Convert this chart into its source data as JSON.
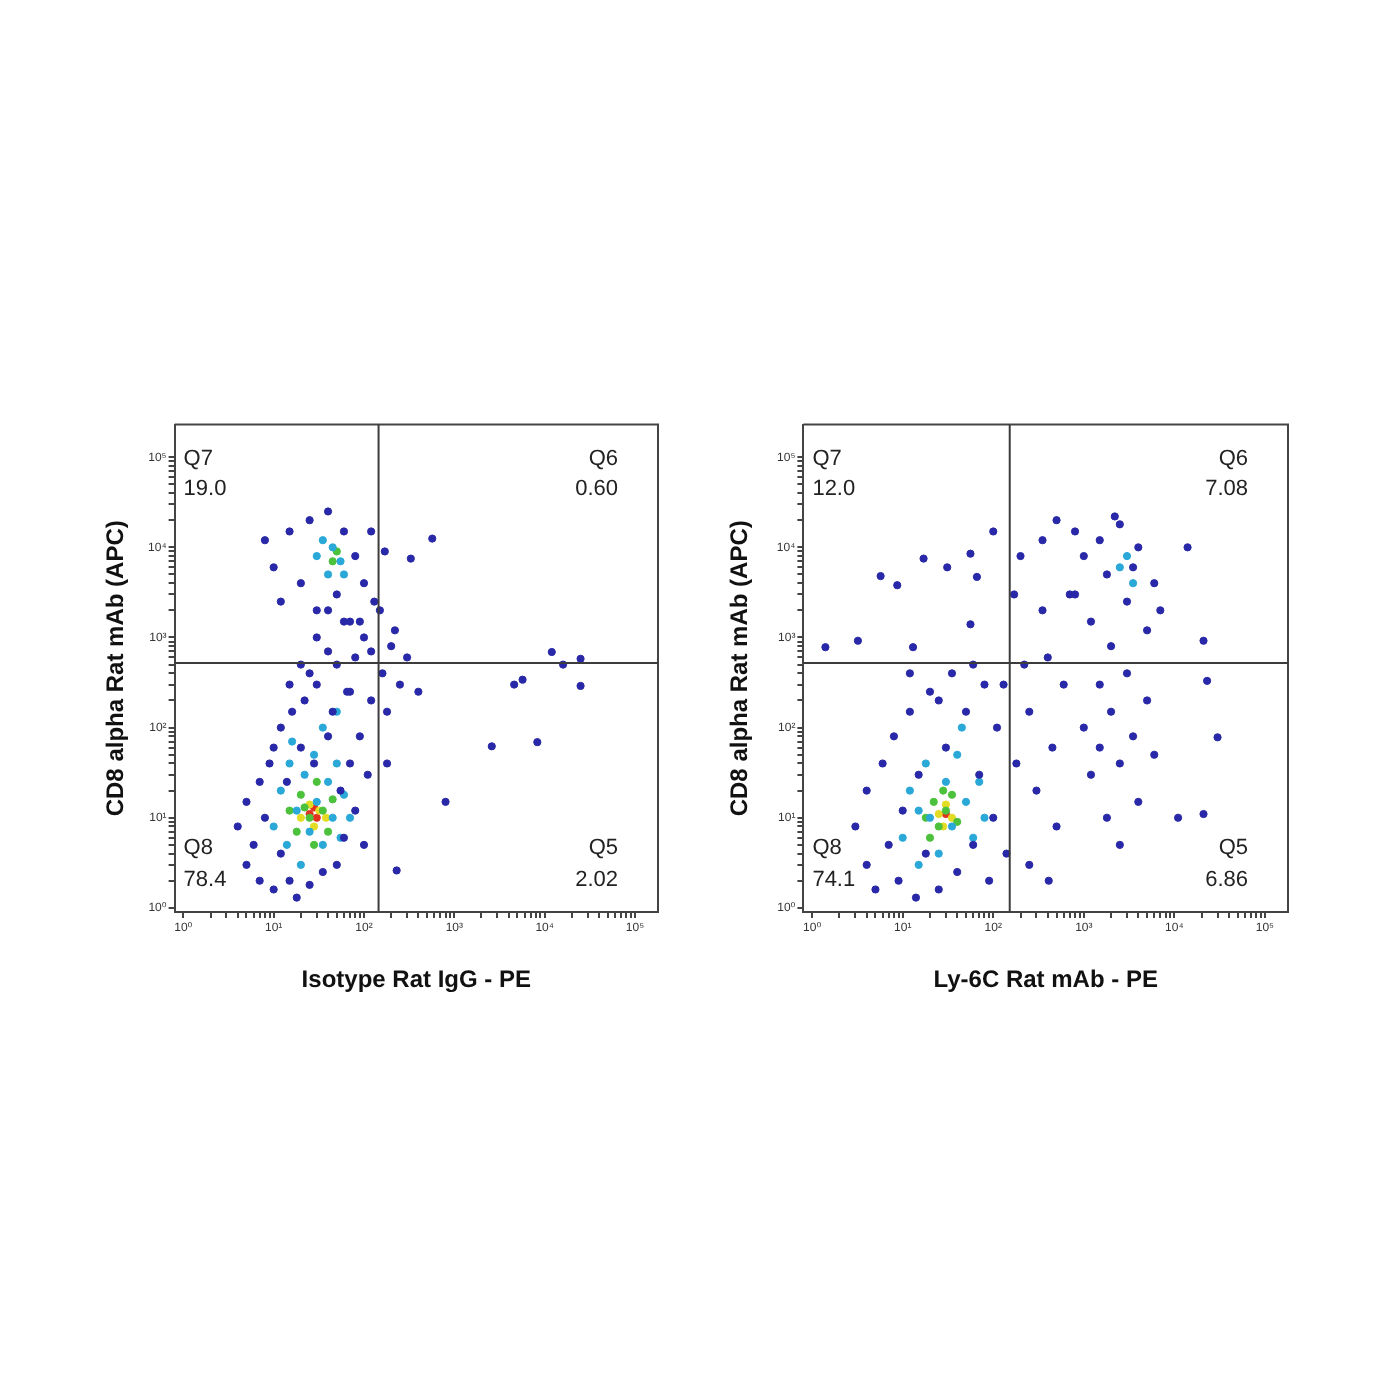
{
  "chart_data": [
    {
      "type": "scatter",
      "xlabel": "Isotype Rat IgG - PE",
      "ylabel": "CD8 alpha Rat mAb (APC)",
      "log": "xy",
      "marker": "circle",
      "xlim": [
        0.8,
        180000
      ],
      "ylim": [
        0.9,
        230000
      ],
      "xticks": [
        {
          "value": 1,
          "label": "10⁰"
        },
        {
          "value": 2,
          "label": null
        },
        {
          "value": 3,
          "label": null
        },
        {
          "value": 4,
          "label": null
        },
        {
          "value": 5,
          "label": null
        },
        {
          "value": 6,
          "label": null
        },
        {
          "value": 7,
          "label": null
        },
        {
          "value": 8,
          "label": null
        },
        {
          "value": 9,
          "label": null
        },
        {
          "value": 10,
          "label": "10¹"
        },
        {
          "value": 20,
          "label": null
        },
        {
          "value": 30,
          "label": null
        },
        {
          "value": 40,
          "label": null
        },
        {
          "value": 50,
          "label": null
        },
        {
          "value": 60,
          "label": null
        },
        {
          "value": 70,
          "label": null
        },
        {
          "value": 80,
          "label": null
        },
        {
          "value": 90,
          "label": null
        },
        {
          "value": 100,
          "label": "10²"
        },
        {
          "value": 200,
          "label": null
        },
        {
          "value": 300,
          "label": null
        },
        {
          "value": 400,
          "label": null
        },
        {
          "value": 500,
          "label": null
        },
        {
          "value": 600,
          "label": null
        },
        {
          "value": 700,
          "label": null
        },
        {
          "value": 800,
          "label": null
        },
        {
          "value": 900,
          "label": null
        },
        {
          "value": 1000,
          "label": "10³"
        },
        {
          "value": 2000,
          "label": null
        },
        {
          "value": 3000,
          "label": null
        },
        {
          "value": 4000,
          "label": null
        },
        {
          "value": 5000,
          "label": null
        },
        {
          "value": 6000,
          "label": null
        },
        {
          "value": 7000,
          "label": null
        },
        {
          "value": 8000,
          "label": null
        },
        {
          "value": 9000,
          "label": null
        },
        {
          "value": 10000,
          "label": "10⁴"
        },
        {
          "value": 20000,
          "label": null
        },
        {
          "value": 30000,
          "label": null
        },
        {
          "value": 40000,
          "label": null
        },
        {
          "value": 50000,
          "label": null
        },
        {
          "value": 60000,
          "label": null
        },
        {
          "value": 70000,
          "label": null
        },
        {
          "value": 80000,
          "label": null
        },
        {
          "value": 90000,
          "label": null
        },
        {
          "value": 100000,
          "label": "10⁵"
        }
      ],
      "yticks": [
        {
          "value": 1,
          "label": "10⁰"
        },
        {
          "value": 2,
          "label": null
        },
        {
          "value": 3,
          "label": null
        },
        {
          "value": 4,
          "label": null
        },
        {
          "value": 5,
          "label": null
        },
        {
          "value": 6,
          "label": null
        },
        {
          "value": 7,
          "label": null
        },
        {
          "value": 8,
          "label": null
        },
        {
          "value": 9,
          "label": null
        },
        {
          "value": 10,
          "label": "10¹"
        },
        {
          "value": 20,
          "label": null
        },
        {
          "value": 30,
          "label": null
        },
        {
          "value": 40,
          "label": null
        },
        {
          "value": 50,
          "label": null
        },
        {
          "value": 60,
          "label": null
        },
        {
          "value": 70,
          "label": null
        },
        {
          "value": 80,
          "label": null
        },
        {
          "value": 90,
          "label": null
        },
        {
          "value": 100,
          "label": "10²"
        },
        {
          "value": 200,
          "label": null
        },
        {
          "value": 300,
          "label": null
        },
        {
          "value": 400,
          "label": null
        },
        {
          "value": 500,
          "label": null
        },
        {
          "value": 600,
          "label": null
        },
        {
          "value": 700,
          "label": null
        },
        {
          "value": 800,
          "label": null
        },
        {
          "value": 900,
          "label": null
        },
        {
          "value": 1000,
          "label": "10³"
        },
        {
          "value": 2000,
          "label": null
        },
        {
          "value": 3000,
          "label": null
        },
        {
          "value": 4000,
          "label": null
        },
        {
          "value": 5000,
          "label": null
        },
        {
          "value": 6000,
          "label": null
        },
        {
          "value": 7000,
          "label": null
        },
        {
          "value": 8000,
          "label": null
        },
        {
          "value": 9000,
          "label": null
        },
        {
          "value": 10000,
          "label": "10⁴"
        },
        {
          "value": 20000,
          "label": null
        },
        {
          "value": 30000,
          "label": null
        },
        {
          "value": 40000,
          "label": null
        },
        {
          "value": 50000,
          "label": null
        },
        {
          "value": 60000,
          "label": null
        },
        {
          "value": 70000,
          "label": null
        },
        {
          "value": 80000,
          "label": null
        },
        {
          "value": 90000,
          "label": null
        },
        {
          "value": 100000,
          "label": "10⁵"
        }
      ],
      "ref_lines": [
        {
          "axis": "x",
          "value": 145,
          "color": "#3c3c3c"
        },
        {
          "axis": "y",
          "value": 520,
          "color": "#3c3c3c"
        }
      ],
      "annotations": [
        "Q7",
        "19.0",
        "Q6",
        "0.60",
        "Q8",
        "78.4",
        "Q5",
        "2.02"
      ],
      "series": [
        {
          "color": "#2828a8",
          "x": [
            4,
            5,
            5,
            6,
            7,
            7,
            8,
            9,
            10,
            10,
            12,
            12,
            14,
            15,
            16,
            18,
            20,
            22,
            25,
            28,
            30,
            35,
            40,
            45,
            50,
            55,
            60,
            65,
            70,
            80,
            90,
            100,
            110,
            120,
            160,
            180,
            200,
            250,
            300,
            400,
            180,
            220,
            150,
            20,
            30,
            40,
            60,
            80,
            15,
            100,
            25,
            50,
            70,
            120,
            90,
            40,
            10,
            12,
            15,
            20,
            25,
            30,
            40,
            50,
            60,
            70,
            80,
            100,
            120,
            8,
            130,
            170,
            570,
            12000,
            16000,
            25000,
            25000,
            5700,
            4600,
            2600,
            8300,
            800,
            230,
            330
          ],
          "values": [
            8,
            3,
            15,
            5,
            25,
            2,
            10,
            40,
            1.6,
            60,
            4,
            100,
            25,
            2,
            150,
            1.3,
            60,
            200,
            1.8,
            40,
            300,
            2.5,
            80,
            150,
            3,
            20,
            6,
            250,
            40,
            12,
            80,
            5,
            30,
            200,
            400,
            150,
            800,
            300,
            600,
            250,
            40,
            1200,
            2000,
            500,
            1000,
            700,
            1500,
            600,
            300,
            1000,
            400,
            500,
            250,
            700,
            1500,
            2000,
            6000,
            2500,
            15000,
            4000,
            20000,
            2000,
            25000,
            3000,
            15000,
            1500,
            8000,
            4000,
            15000,
            12000,
            2500,
            9000,
            12500,
            690,
            500,
            580,
            290,
            340,
            300,
            62,
            69,
            15,
            2.6,
            7500
          ]
        },
        {
          "color": "#2aa8d8",
          "x": [
            10,
            12,
            14,
            15,
            18,
            20,
            22,
            25,
            28,
            30,
            35,
            40,
            45,
            50,
            55,
            60,
            70,
            16,
            35,
            50,
            30,
            40,
            45,
            55,
            35,
            60
          ],
          "values": [
            8,
            20,
            5,
            40,
            12,
            3,
            30,
            7,
            50,
            15,
            5,
            25,
            10,
            40,
            6,
            18,
            10,
            70,
            100,
            150,
            8000,
            5000,
            10000,
            7000,
            12000,
            5000
          ]
        },
        {
          "color": "#4cc23c",
          "x": [
            15,
            18,
            20,
            25,
            28,
            30,
            35,
            40,
            45,
            22,
            45,
            50
          ],
          "values": [
            12,
            7,
            18,
            10,
            5,
            25,
            12,
            7,
            16,
            13,
            7000,
            9000
          ]
        },
        {
          "color": "#e4dc22",
          "x": [
            20,
            25,
            28,
            32,
            38
          ],
          "values": [
            10,
            14,
            8,
            12,
            10
          ]
        },
        {
          "color": "#e0321e",
          "x": [
            25,
            30,
            28
          ],
          "values": [
            11,
            10,
            13
          ]
        }
      ]
    },
    {
      "type": "scatter",
      "xlabel": "Ly-6C Rat mAb - PE",
      "ylabel": "CD8 alpha Rat mAb (APC)",
      "log": "xy",
      "marker": "circle",
      "xlim": [
        0.8,
        180000
      ],
      "ylim": [
        0.9,
        230000
      ],
      "xticks": [
        {
          "value": 1,
          "label": "10⁰"
        },
        {
          "value": 2,
          "label": null
        },
        {
          "value": 3,
          "label": null
        },
        {
          "value": 4,
          "label": null
        },
        {
          "value": 5,
          "label": null
        },
        {
          "value": 6,
          "label": null
        },
        {
          "value": 7,
          "label": null
        },
        {
          "value": 8,
          "label": null
        },
        {
          "value": 9,
          "label": null
        },
        {
          "value": 10,
          "label": "10¹"
        },
        {
          "value": 20,
          "label": null
        },
        {
          "value": 30,
          "label": null
        },
        {
          "value": 40,
          "label": null
        },
        {
          "value": 50,
          "label": null
        },
        {
          "value": 60,
          "label": null
        },
        {
          "value": 70,
          "label": null
        },
        {
          "value": 80,
          "label": null
        },
        {
          "value": 90,
          "label": null
        },
        {
          "value": 100,
          "label": "10²"
        },
        {
          "value": 200,
          "label": null
        },
        {
          "value": 300,
          "label": null
        },
        {
          "value": 400,
          "label": null
        },
        {
          "value": 500,
          "label": null
        },
        {
          "value": 600,
          "label": null
        },
        {
          "value": 700,
          "label": null
        },
        {
          "value": 800,
          "label": null
        },
        {
          "value": 900,
          "label": null
        },
        {
          "value": 1000,
          "label": "10³"
        },
        {
          "value": 2000,
          "label": null
        },
        {
          "value": 3000,
          "label": null
        },
        {
          "value": 4000,
          "label": null
        },
        {
          "value": 5000,
          "label": null
        },
        {
          "value": 6000,
          "label": null
        },
        {
          "value": 7000,
          "label": null
        },
        {
          "value": 8000,
          "label": null
        },
        {
          "value": 9000,
          "label": null
        },
        {
          "value": 10000,
          "label": "10⁴"
        },
        {
          "value": 20000,
          "label": null
        },
        {
          "value": 30000,
          "label": null
        },
        {
          "value": 40000,
          "label": null
        },
        {
          "value": 50000,
          "label": null
        },
        {
          "value": 60000,
          "label": null
        },
        {
          "value": 70000,
          "label": null
        },
        {
          "value": 80000,
          "label": null
        },
        {
          "value": 90000,
          "label": null
        },
        {
          "value": 100000,
          "label": "10⁵"
        }
      ],
      "yticks": [
        {
          "value": 1,
          "label": "10⁰"
        },
        {
          "value": 2,
          "label": null
        },
        {
          "value": 3,
          "label": null
        },
        {
          "value": 4,
          "label": null
        },
        {
          "value": 5,
          "label": null
        },
        {
          "value": 6,
          "label": null
        },
        {
          "value": 7,
          "label": null
        },
        {
          "value": 8,
          "label": null
        },
        {
          "value": 9,
          "label": null
        },
        {
          "value": 10,
          "label": "10¹"
        },
        {
          "value": 20,
          "label": null
        },
        {
          "value": 30,
          "label": null
        },
        {
          "value": 40,
          "label": null
        },
        {
          "value": 50,
          "label": null
        },
        {
          "value": 60,
          "label": null
        },
        {
          "value": 70,
          "label": null
        },
        {
          "value": 80,
          "label": null
        },
        {
          "value": 90,
          "label": null
        },
        {
          "value": 100,
          "label": "10²"
        },
        {
          "value": 200,
          "label": null
        },
        {
          "value": 300,
          "label": null
        },
        {
          "value": 400,
          "label": null
        },
        {
          "value": 500,
          "label": null
        },
        {
          "value": 600,
          "label": null
        },
        {
          "value": 700,
          "label": null
        },
        {
          "value": 800,
          "label": null
        },
        {
          "value": 900,
          "label": null
        },
        {
          "value": 1000,
          "label": "10³"
        },
        {
          "value": 2000,
          "label": null
        },
        {
          "value": 3000,
          "label": null
        },
        {
          "value": 4000,
          "label": null
        },
        {
          "value": 5000,
          "label": null
        },
        {
          "value": 6000,
          "label": null
        },
        {
          "value": 7000,
          "label": null
        },
        {
          "value": 8000,
          "label": null
        },
        {
          "value": 9000,
          "label": null
        },
        {
          "value": 10000,
          "label": "10⁴"
        },
        {
          "value": 20000,
          "label": null
        },
        {
          "value": 30000,
          "label": null
        },
        {
          "value": 40000,
          "label": null
        },
        {
          "value": 50000,
          "label": null
        },
        {
          "value": 60000,
          "label": null
        },
        {
          "value": 70000,
          "label": null
        },
        {
          "value": 80000,
          "label": null
        },
        {
          "value": 90000,
          "label": null
        },
        {
          "value": 100000,
          "label": "10⁵"
        }
      ],
      "ref_lines": [
        {
          "axis": "x",
          "value": 152,
          "color": "#3c3c3c"
        },
        {
          "axis": "y",
          "value": 520,
          "color": "#3c3c3c"
        }
      ],
      "annotations": [
        "Q7",
        "12.0",
        "Q6",
        "7.08",
        "Q8",
        "74.1",
        "Q5",
        "6.86"
      ],
      "series": [
        {
          "color": "#2828a8",
          "x": [
            3,
            4,
            4,
            5,
            6,
            7,
            8,
            9,
            10,
            12,
            14,
            15,
            18,
            20,
            25,
            30,
            35,
            40,
            50,
            60,
            70,
            80,
            90,
            100,
            110,
            130,
            140,
            12,
            25,
            60,
            5.7,
            8.7,
            17,
            31,
            56,
            66,
            100,
            3.2,
            1.4,
            13,
            56,
            170,
            200,
            220,
            250,
            300,
            350,
            400,
            450,
            500,
            600,
            700,
            250,
            180,
            800,
            350,
            500,
            800,
            1000,
            1200,
            1500,
            2000,
            2500,
            3000,
            4000,
            5000,
            6000,
            1800,
            3500,
            7000,
            2200,
            1000,
            1200,
            1500,
            1800,
            2000,
            2500,
            3000,
            3500,
            4000,
            5000,
            1500,
            2500,
            6000,
            21000,
            23000,
            30000,
            14000,
            11000,
            21000,
            410
          ],
          "values": [
            8,
            3,
            20,
            1.6,
            40,
            5,
            80,
            2,
            12,
            150,
            1.3,
            30,
            4,
            250,
            1.6,
            60,
            400,
            2.5,
            150,
            5,
            30,
            300,
            2,
            10,
            100,
            300,
            4,
            400,
            200,
            500,
            4800,
            3800,
            7500,
            6000,
            8500,
            4700,
            15000,
            920,
            780,
            780,
            1400,
            3000,
            8000,
            500,
            150,
            20,
            2000,
            600,
            60,
            8,
            300,
            3000,
            3,
            40,
            15000,
            12000,
            20000,
            3000,
            8000,
            1500,
            12000,
            800,
            18000,
            2500,
            10000,
            1200,
            4000,
            5000,
            6000,
            2000,
            22000,
            100,
            30,
            300,
            10,
            150,
            40,
            400,
            80,
            15,
            200,
            60,
            5,
            50,
            920,
            330,
            78,
            10000,
            10,
            11,
            2
          ]
        },
        {
          "color": "#2aa8d8",
          "x": [
            10,
            12,
            15,
            18,
            20,
            25,
            30,
            35,
            40,
            50,
            60,
            70,
            80,
            15,
            45,
            2500,
            3000,
            3500
          ],
          "values": [
            6,
            20,
            3,
            40,
            10,
            4,
            25,
            8,
            50,
            15,
            6,
            25,
            10,
            12,
            100,
            6000,
            8000,
            4000
          ]
        },
        {
          "color": "#4cc23c",
          "x": [
            18,
            22,
            25,
            30,
            35,
            40,
            28,
            20
          ],
          "values": [
            10,
            15,
            8,
            12,
            18,
            9,
            20,
            6
          ]
        },
        {
          "color": "#e4dc22",
          "x": [
            25,
            30,
            35,
            28
          ],
          "values": [
            11,
            14,
            10,
            8
          ]
        },
        {
          "color": "#e0321e",
          "x": [
            30
          ],
          "values": [
            11
          ]
        }
      ]
    }
  ]
}
